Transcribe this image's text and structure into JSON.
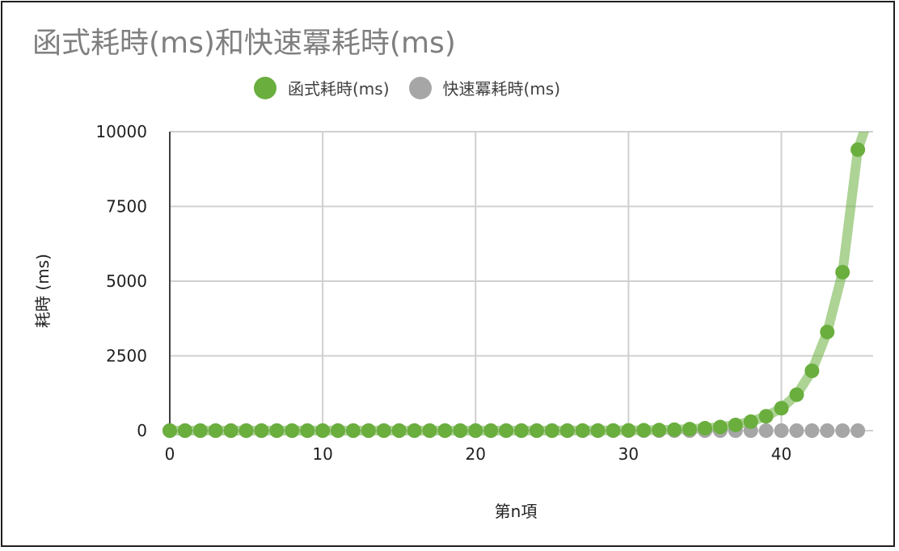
{
  "chart_data": {
    "type": "scatter",
    "title": "函式耗時(ms)和快速冪耗時(ms)",
    "xlabel": "第n項",
    "ylabel": "耗時 (ms)",
    "xlim": [
      0,
      46
    ],
    "ylim": [
      0,
      10000
    ],
    "x_ticks": [
      "0",
      "10",
      "20",
      "30",
      "40"
    ],
    "y_ticks": [
      "0",
      "2500",
      "5000",
      "7500",
      "10000"
    ],
    "grid": true,
    "legend_position": "top",
    "series": [
      {
        "name": "函式耗時(ms)",
        "color": "#6aae3e",
        "trendline": true,
        "x": [
          0,
          1,
          2,
          3,
          4,
          5,
          6,
          7,
          8,
          9,
          10,
          11,
          12,
          13,
          14,
          15,
          16,
          17,
          18,
          19,
          20,
          21,
          22,
          23,
          24,
          25,
          26,
          27,
          28,
          29,
          30,
          31,
          32,
          33,
          34,
          35,
          36,
          37,
          38,
          39,
          40,
          41,
          42,
          43,
          44,
          45
        ],
        "y": [
          0,
          0,
          0,
          0,
          0,
          0,
          0,
          0,
          0,
          0,
          0,
          0,
          0,
          0,
          0,
          0,
          0,
          0,
          0,
          0,
          0,
          0,
          0,
          0,
          0,
          0,
          1,
          2,
          3,
          5,
          8,
          12,
          20,
          32,
          50,
          80,
          120,
          190,
          300,
          480,
          750,
          1200,
          2000,
          3300,
          5300,
          9400
        ]
      },
      {
        "name": "快速冪耗時(ms)",
        "color": "#a6a6a6",
        "trendline": false,
        "x": [
          0,
          1,
          2,
          3,
          4,
          5,
          6,
          7,
          8,
          9,
          10,
          11,
          12,
          13,
          14,
          15,
          16,
          17,
          18,
          19,
          20,
          21,
          22,
          23,
          24,
          25,
          26,
          27,
          28,
          29,
          30,
          31,
          32,
          33,
          34,
          35,
          36,
          37,
          38,
          39,
          40,
          41,
          42,
          43,
          44,
          45
        ],
        "y": [
          0,
          0,
          0,
          0,
          0,
          0,
          0,
          0,
          0,
          0,
          0,
          0,
          0,
          0,
          0,
          0,
          0,
          0,
          0,
          0,
          0,
          0,
          0,
          0,
          0,
          0,
          0,
          0,
          0,
          0,
          0,
          0,
          0,
          0,
          0,
          0,
          0,
          0,
          0,
          0,
          0,
          0,
          0,
          0,
          0,
          0
        ]
      }
    ]
  }
}
